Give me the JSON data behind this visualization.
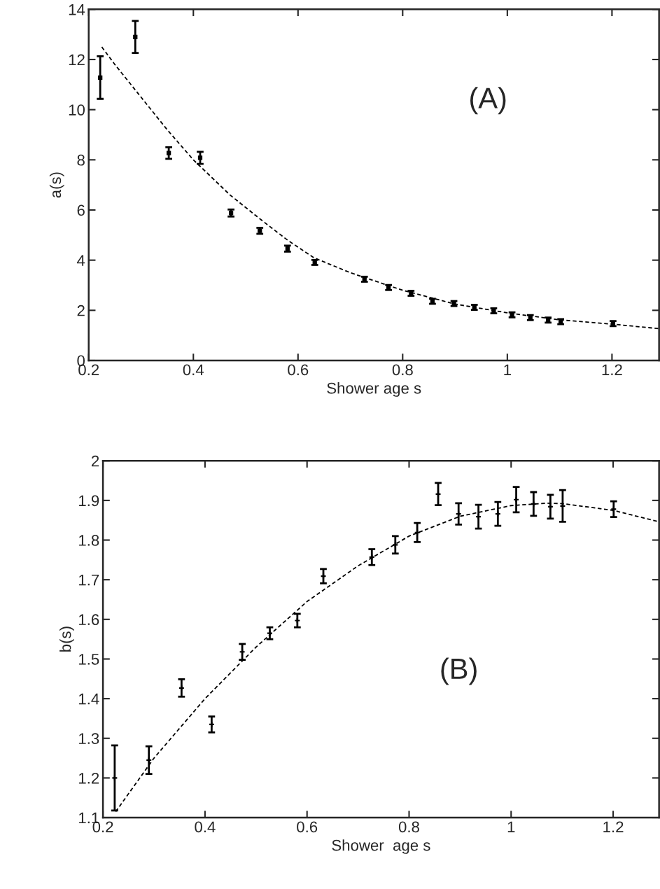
{
  "chart_data": [
    {
      "type": "scatter",
      "xlabel": "Shower age s",
      "ylabel": "a(s)",
      "xlim": [
        0.2,
        1.29
      ],
      "ylim": [
        0,
        14
      ],
      "xticks": [
        0.2,
        0.4,
        0.6,
        0.8,
        1,
        1.2
      ],
      "yticks": [
        0,
        2,
        4,
        6,
        8,
        10,
        12,
        14
      ],
      "grid": false,
      "legend": false,
      "annotations": [
        "(A)"
      ],
      "series": [
        {
          "color": "#000000",
          "marker": "square",
          "x": [
            0.222,
            0.289,
            0.353,
            0.413,
            0.472,
            0.527,
            0.58,
            0.632,
            0.727,
            0.773,
            0.816,
            0.857,
            0.898,
            0.937,
            0.974,
            1.009,
            1.044,
            1.078,
            1.102,
            1.202
          ],
          "values": [
            11.28,
            12.9,
            8.27,
            8.08,
            5.88,
            5.17,
            4.46,
            3.91,
            3.24,
            2.91,
            2.68,
            2.36,
            2.27,
            2.12,
            1.98,
            1.82,
            1.71,
            1.61,
            1.55,
            1.47
          ],
          "errors": [
            0.85,
            0.64,
            0.23,
            0.24,
            0.14,
            0.12,
            0.12,
            0.1,
            0.1,
            0.1,
            0.1,
            0.1,
            0.1,
            0.1,
            0.1,
            0.1,
            0.1,
            0.1,
            0.1,
            0.1
          ]
        },
        {
          "type": "line",
          "color": "#000000",
          "line_style": "dashed",
          "x": [
            0.225,
            0.25,
            0.3,
            0.35,
            0.4,
            0.47,
            0.53,
            0.58,
            0.63,
            0.7,
            0.8,
            0.9,
            1.0,
            1.1,
            1.2,
            1.29
          ],
          "values": [
            12.5,
            11.8,
            10.5,
            9.2,
            8.0,
            6.6,
            5.6,
            4.8,
            4.1,
            3.5,
            2.8,
            2.25,
            1.9,
            1.62,
            1.45,
            1.27
          ]
        }
      ]
    },
    {
      "type": "scatter",
      "xlabel": "Shower  age s",
      "ylabel": "b(s)",
      "xlim": [
        0.2,
        1.29
      ],
      "ylim": [
        1.1,
        2
      ],
      "xticks": [
        0.2,
        0.4,
        0.6,
        0.8,
        1,
        1.2
      ],
      "yticks": [
        1.1,
        1.2,
        1.3,
        1.4,
        1.5,
        1.6,
        1.7,
        1.8,
        1.9,
        2
      ],
      "grid": false,
      "legend": false,
      "annotations": [
        "(B)"
      ],
      "series": [
        {
          "color": "#000000",
          "marker": "cross",
          "x": [
            0.223,
            0.29,
            0.354,
            0.413,
            0.473,
            0.527,
            0.581,
            0.632,
            0.727,
            0.773,
            0.816,
            0.857,
            0.897,
            0.936,
            0.974,
            1.01,
            1.044,
            1.077,
            1.101,
            1.201
          ],
          "values": [
            1.2,
            1.245,
            1.427,
            1.335,
            1.518,
            1.565,
            1.597,
            1.709,
            1.757,
            1.788,
            1.819,
            1.916,
            1.866,
            1.859,
            1.866,
            1.902,
            1.891,
            1.884,
            1.886,
            1.878
          ],
          "errors": [
            0.082,
            0.035,
            0.022,
            0.02,
            0.02,
            0.015,
            0.017,
            0.018,
            0.02,
            0.022,
            0.024,
            0.028,
            0.027,
            0.03,
            0.03,
            0.032,
            0.03,
            0.03,
            0.04,
            0.02
          ]
        },
        {
          "type": "line",
          "color": "#000000",
          "line_style": "dashed",
          "x": [
            0.225,
            0.3,
            0.4,
            0.5,
            0.6,
            0.7,
            0.8,
            0.9,
            1.0,
            1.07,
            1.1,
            1.2,
            1.29
          ],
          "values": [
            1.115,
            1.25,
            1.4,
            1.53,
            1.645,
            1.735,
            1.81,
            1.86,
            1.887,
            1.893,
            1.892,
            1.875,
            1.846
          ]
        }
      ]
    }
  ]
}
